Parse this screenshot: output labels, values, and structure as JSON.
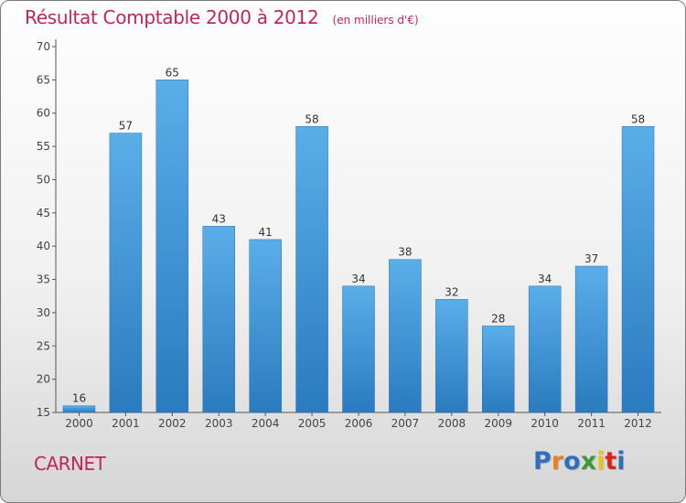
{
  "title": "Résultat Comptable 2000 à 2012",
  "unit_note": "(en milliers d'€)",
  "commune": "CARNET",
  "logo": {
    "letters": [
      "P",
      "r",
      "o",
      "x",
      "i",
      "t",
      "i"
    ],
    "colors": [
      "#2e6fc0",
      "#e8831d",
      "#2e6fc0",
      "#3a9a3a",
      "#e8c51d",
      "#d8261d",
      "#2e6fc0"
    ]
  },
  "colors": {
    "bar_dark": "#2a7bbf",
    "bar_light": "#5aaee8",
    "title": "#c0265a"
  },
  "chart_data": {
    "type": "bar",
    "categories": [
      "2000",
      "2001",
      "2002",
      "2003",
      "2004",
      "2005",
      "2006",
      "2007",
      "2008",
      "2009",
      "2010",
      "2011",
      "2012"
    ],
    "values": [
      16,
      57,
      65,
      43,
      41,
      58,
      34,
      38,
      32,
      28,
      34,
      37,
      58
    ],
    "ylim": [
      15,
      70
    ],
    "yticks": [
      15,
      20,
      25,
      30,
      35,
      40,
      45,
      50,
      55,
      60,
      65,
      70
    ],
    "grid": false,
    "xlabel": "",
    "ylabel": ""
  }
}
